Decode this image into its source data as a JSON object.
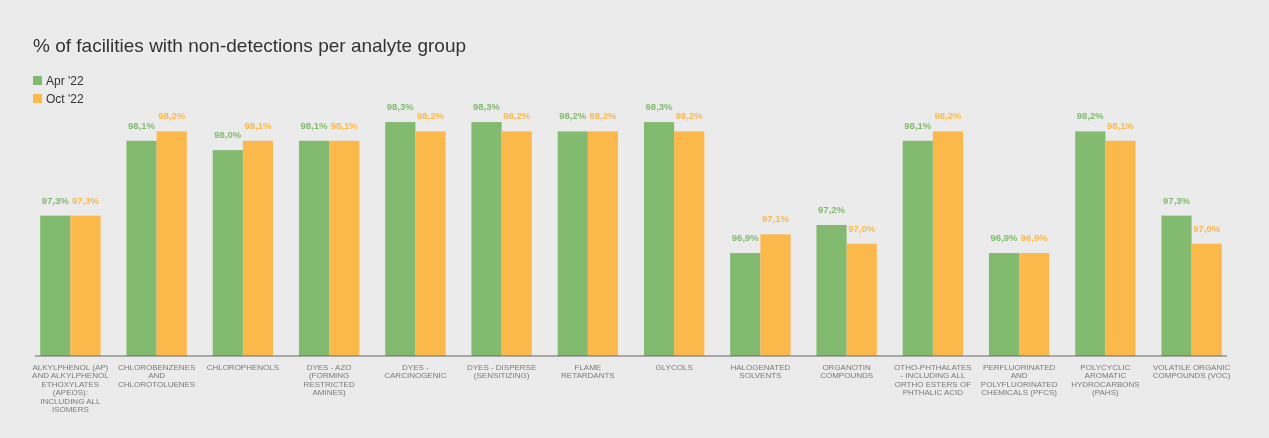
{
  "chart_data": {
    "type": "bar",
    "title": "% of facilities with non-detections per analyte group",
    "categories": [
      "ALKYLPHENOL (AP) AND ALKYLPHENOL ETHOXYLATES (APEOS): INCLUDING ALL ISOMERS",
      "CHLOROBENZENES AND CHLOROTOLUENES",
      "CHLOROPHENOLS",
      "DYES - AZO (FORMING RESTRICTED AMINES)",
      "DYES - CARCINOGENIC",
      "DYES - DISPERSE (SENSITIZING)",
      "FLAME RETARDANTS",
      "GLYCOLS",
      "HALOGENATED SOLVENTS",
      "ORGANOTIN COMPOUNDS",
      "OTHO-PHTHALATES - INCLUDING ALL ORTHO ESTERS OF PHTHALIC ACID",
      "PERFLUORINATED AND POLYFLUORINATED CHEMICALS (PFCS)",
      "POLYCYCLIC AROMATIC HYDROCARBONS (PAHS)",
      "VOLATILE ORGANIC COMPOUNDS (VOC)"
    ],
    "series": [
      {
        "name": "Apr '22",
        "color": "#82bb6f",
        "values": [
          97.3,
          98.1,
          98.0,
          98.1,
          98.3,
          98.3,
          98.2,
          98.3,
          96.9,
          97.2,
          98.1,
          96.9,
          98.2,
          97.3
        ],
        "value_labels": [
          "97,3%",
          "98,1%",
          "98,0%",
          "98,1%",
          "98,3%",
          "98,3%",
          "98,2%",
          "98,3%",
          "96,9%",
          "97,2%",
          "98,1%",
          "96,9%",
          "98,2%",
          "97,3%"
        ]
      },
      {
        "name": "Oct '22",
        "color": "#fbb94c",
        "values": [
          97.3,
          98.2,
          98.1,
          98.1,
          98.2,
          98.2,
          98.2,
          98.2,
          97.1,
          97.0,
          98.2,
          96.9,
          98.1,
          97.0
        ],
        "value_labels": [
          "97,3%",
          "98,2%",
          "98,1%",
          "98,1%",
          "98,2%",
          "98,2%",
          "98,2%",
          "98,2%",
          "97,1%",
          "97,0%",
          "98,2%",
          "96,9%",
          "98,1%",
          "97,0%"
        ]
      }
    ],
    "ylim": [
      95.8,
      98.6
    ],
    "tick_labels": "x",
    "legend": "top left",
    "grid": false
  }
}
